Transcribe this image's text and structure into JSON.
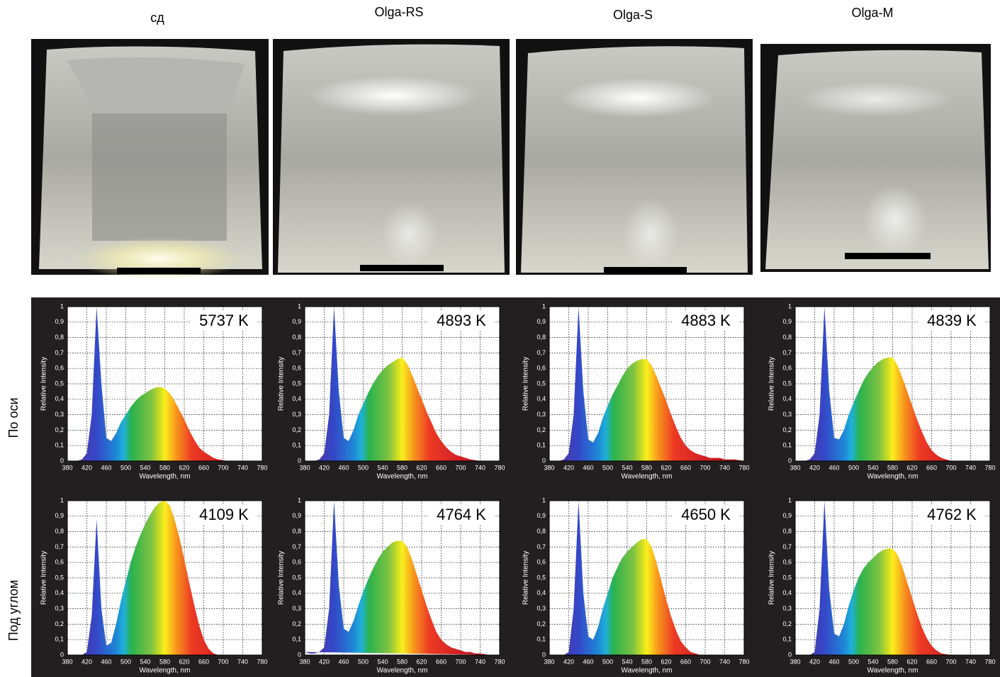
{
  "column_titles": [
    "сд",
    "Olga-RS",
    "Olga-S",
    "Olga-M"
  ],
  "row_labels": [
    "По оси",
    "Под углом"
  ],
  "chart_data": [
    {
      "type": "area",
      "annotation": "5737 K",
      "xlabel": "Wavelength, nm",
      "ylabel": "Relative Intensity",
      "x": [
        380,
        390,
        400,
        410,
        420,
        430,
        440,
        450,
        460,
        470,
        480,
        490,
        500,
        510,
        520,
        530,
        540,
        550,
        560,
        570,
        580,
        590,
        600,
        610,
        620,
        630,
        640,
        650,
        660,
        670,
        680,
        690,
        700,
        710,
        720,
        730,
        740,
        750,
        760,
        770,
        780
      ],
      "values": [
        0,
        0,
        0,
        0.01,
        0.05,
        0.3,
        1,
        0.5,
        0.15,
        0.13,
        0.18,
        0.25,
        0.3,
        0.35,
        0.39,
        0.42,
        0.44,
        0.46,
        0.475,
        0.48,
        0.47,
        0.44,
        0.39,
        0.33,
        0.27,
        0.2,
        0.14,
        0.09,
        0.06,
        0.04,
        0.02,
        0.01,
        0.005,
        0,
        0,
        0,
        0,
        0,
        0,
        0,
        0
      ],
      "xlim": [
        380,
        780
      ],
      "ylim": [
        0,
        1
      ],
      "xticks": [
        380,
        420,
        460,
        500,
        540,
        580,
        620,
        660,
        700,
        740,
        780
      ],
      "yticks": [
        0,
        {
          "value": 0.1,
          "label": "0,1"
        },
        {
          "value": 0.2,
          "label": "0,2"
        },
        {
          "value": 0.3,
          "label": "0,3"
        },
        {
          "value": 0.4,
          "label": "0,4"
        },
        {
          "value": 0.5,
          "label": "0,5"
        },
        {
          "value": 0.6,
          "label": "0,6"
        },
        {
          "value": 0.7,
          "label": "0,7"
        },
        {
          "value": 0.8,
          "label": "0,8"
        },
        {
          "value": 0.9,
          "label": "0,9"
        },
        1
      ],
      "grid": true
    },
    {
      "type": "area",
      "annotation": "4893 K",
      "xlabel": "Wavelength, nm",
      "ylabel": "Relative Intensity",
      "x": [
        380,
        390,
        400,
        410,
        420,
        430,
        440,
        450,
        460,
        470,
        480,
        490,
        500,
        510,
        520,
        530,
        540,
        550,
        560,
        570,
        580,
        590,
        600,
        610,
        620,
        630,
        640,
        650,
        660,
        670,
        680,
        690,
        700,
        710,
        720,
        730,
        740,
        750,
        760,
        770,
        780
      ],
      "values": [
        0,
        0,
        0,
        0.01,
        0.05,
        0.3,
        1,
        0.45,
        0.15,
        0.13,
        0.2,
        0.3,
        0.37,
        0.44,
        0.5,
        0.55,
        0.59,
        0.62,
        0.64,
        0.66,
        0.67,
        0.63,
        0.56,
        0.48,
        0.4,
        0.32,
        0.25,
        0.18,
        0.13,
        0.09,
        0.06,
        0.04,
        0.03,
        0.02,
        0.01,
        0.005,
        0,
        0,
        0,
        0,
        0
      ],
      "xlim": [
        380,
        780
      ],
      "ylim": [
        0,
        1
      ],
      "xticks": [
        380,
        420,
        460,
        500,
        540,
        580,
        620,
        660,
        700,
        740,
        780
      ],
      "yticks": [
        0,
        {
          "value": 0.1,
          "label": "0,1"
        },
        {
          "value": 0.2,
          "label": "0,2"
        },
        {
          "value": 0.3,
          "label": "0,3"
        },
        {
          "value": 0.4,
          "label": "0,4"
        },
        {
          "value": 0.5,
          "label": "0,5"
        },
        {
          "value": 0.6,
          "label": "0,6"
        },
        {
          "value": 0.7,
          "label": "0,7"
        },
        {
          "value": 0.8,
          "label": "0,8"
        },
        {
          "value": 0.9,
          "label": "0,9"
        },
        1
      ],
      "grid": true
    },
    {
      "type": "area",
      "annotation": "4883 K",
      "xlabel": "Wavelength, nm",
      "ylabel": "Relative Intensity",
      "x": [
        380,
        390,
        400,
        410,
        420,
        430,
        440,
        450,
        460,
        470,
        480,
        490,
        500,
        510,
        520,
        530,
        540,
        550,
        560,
        570,
        580,
        590,
        600,
        610,
        620,
        630,
        640,
        650,
        660,
        670,
        680,
        690,
        700,
        710,
        720,
        730,
        740,
        750,
        760,
        770,
        780
      ],
      "values": [
        0,
        0,
        0,
        0.01,
        0.05,
        0.3,
        1,
        0.45,
        0.14,
        0.12,
        0.18,
        0.28,
        0.36,
        0.43,
        0.49,
        0.55,
        0.6,
        0.63,
        0.65,
        0.66,
        0.66,
        0.62,
        0.55,
        0.47,
        0.39,
        0.3,
        0.22,
        0.15,
        0.1,
        0.07,
        0.05,
        0.04,
        0.03,
        0.02,
        0.02,
        0.02,
        0.01,
        0.01,
        0.01,
        0.005,
        0
      ],
      "xlim": [
        380,
        780
      ],
      "ylim": [
        0,
        1
      ],
      "xticks": [
        380,
        420,
        460,
        500,
        540,
        580,
        620,
        660,
        700,
        740,
        780
      ],
      "yticks": [
        0,
        {
          "value": 0.1,
          "label": "0,1"
        },
        {
          "value": 0.2,
          "label": "0,2"
        },
        {
          "value": 0.3,
          "label": "0,3"
        },
        {
          "value": 0.4,
          "label": "0,4"
        },
        {
          "value": 0.5,
          "label": "0,5"
        },
        {
          "value": 0.6,
          "label": "0,6"
        },
        {
          "value": 0.7,
          "label": "0,7"
        },
        {
          "value": 0.8,
          "label": "0,8"
        },
        {
          "value": 0.9,
          "label": "0,9"
        },
        1
      ],
      "grid": true
    },
    {
      "type": "area",
      "annotation": "4839 K",
      "xlabel": "Wavelength, nm",
      "ylabel": "Relative Intensity",
      "x": [
        380,
        390,
        400,
        410,
        420,
        430,
        440,
        450,
        460,
        470,
        480,
        490,
        500,
        510,
        520,
        530,
        540,
        550,
        560,
        570,
        580,
        590,
        600,
        610,
        620,
        630,
        640,
        650,
        660,
        670,
        680,
        690,
        700,
        710,
        720,
        730,
        740,
        750,
        760,
        770,
        780
      ],
      "values": [
        0,
        0,
        0,
        0.01,
        0.05,
        0.3,
        1,
        0.45,
        0.15,
        0.14,
        0.2,
        0.3,
        0.38,
        0.45,
        0.52,
        0.57,
        0.61,
        0.64,
        0.66,
        0.67,
        0.67,
        0.62,
        0.54,
        0.45,
        0.36,
        0.27,
        0.19,
        0.12,
        0.07,
        0.04,
        0.02,
        0.01,
        0,
        0,
        0,
        0,
        0,
        0,
        0,
        0,
        0
      ],
      "xlim": [
        380,
        780
      ],
      "ylim": [
        0,
        1
      ],
      "xticks": [
        380,
        420,
        460,
        500,
        540,
        580,
        620,
        660,
        700,
        740,
        780
      ],
      "yticks": [
        0,
        {
          "value": 0.1,
          "label": "0,1"
        },
        {
          "value": 0.2,
          "label": "0,2"
        },
        {
          "value": 0.3,
          "label": "0,3"
        },
        {
          "value": 0.4,
          "label": "0,4"
        },
        {
          "value": 0.5,
          "label": "0,5"
        },
        {
          "value": 0.6,
          "label": "0,6"
        },
        {
          "value": 0.7,
          "label": "0,7"
        },
        {
          "value": 0.8,
          "label": "0,8"
        },
        {
          "value": 0.9,
          "label": "0,9"
        },
        1
      ],
      "grid": true
    },
    {
      "type": "area",
      "annotation": "4109 K",
      "xlabel": "Wavelength, nm",
      "ylabel": "Relative Intensity",
      "x": [
        380,
        390,
        400,
        410,
        420,
        430,
        440,
        450,
        460,
        470,
        480,
        490,
        500,
        510,
        520,
        530,
        540,
        550,
        560,
        570,
        580,
        590,
        600,
        610,
        620,
        630,
        640,
        650,
        660,
        670,
        680,
        690,
        700,
        710,
        720,
        730,
        740,
        750,
        760,
        770,
        780
      ],
      "values": [
        0,
        0,
        0,
        0,
        0.02,
        0.25,
        0.88,
        0.3,
        0.06,
        0.08,
        0.2,
        0.35,
        0.48,
        0.6,
        0.7,
        0.78,
        0.85,
        0.91,
        0.96,
        0.99,
        1,
        0.97,
        0.88,
        0.76,
        0.62,
        0.47,
        0.33,
        0.2,
        0.1,
        0.04,
        0.01,
        0,
        0,
        0,
        0,
        0,
        0,
        0,
        0,
        0,
        0
      ],
      "xlim": [
        380,
        780
      ],
      "ylim": [
        0,
        1
      ],
      "xticks": [
        380,
        420,
        460,
        500,
        540,
        580,
        620,
        660,
        700,
        740,
        780
      ],
      "yticks": [
        0,
        {
          "value": 0.1,
          "label": "0,1"
        },
        {
          "value": 0.2,
          "label": "0,2"
        },
        {
          "value": 0.3,
          "label": "0,3"
        },
        {
          "value": 0.4,
          "label": "0,4"
        },
        {
          "value": 0.5,
          "label": "0,5"
        },
        {
          "value": 0.6,
          "label": "0,6"
        },
        {
          "value": 0.7,
          "label": "0,7"
        },
        {
          "value": 0.8,
          "label": "0,8"
        },
        {
          "value": 0.9,
          "label": "0,9"
        },
        1
      ],
      "grid": true
    },
    {
      "type": "area",
      "annotation": "4764 K",
      "xlabel": "Wavelength, nm",
      "ylabel": "Relative Intensity",
      "x": [
        380,
        390,
        400,
        410,
        420,
        430,
        440,
        450,
        460,
        470,
        480,
        490,
        500,
        510,
        520,
        530,
        540,
        550,
        560,
        570,
        580,
        590,
        600,
        610,
        620,
        630,
        640,
        650,
        660,
        670,
        680,
        690,
        700,
        710,
        720,
        730,
        740,
        750,
        760,
        770,
        780
      ],
      "values": [
        0.02,
        0.01,
        0.01,
        0.02,
        0.05,
        0.3,
        1,
        0.45,
        0.17,
        0.15,
        0.22,
        0.32,
        0.41,
        0.49,
        0.56,
        0.62,
        0.67,
        0.7,
        0.73,
        0.74,
        0.74,
        0.7,
        0.62,
        0.52,
        0.42,
        0.32,
        0.23,
        0.15,
        0.1,
        0.07,
        0.05,
        0.04,
        0.03,
        0.02,
        0.02,
        0.01,
        0.01,
        0.005,
        0,
        0,
        0
      ],
      "xlim": [
        380,
        780
      ],
      "ylim": [
        0,
        1
      ],
      "xticks": [
        380,
        420,
        460,
        500,
        540,
        580,
        620,
        660,
        700,
        740,
        780
      ],
      "yticks": [
        0,
        {
          "value": 0.1,
          "label": "0,1"
        },
        {
          "value": 0.2,
          "label": "0,2"
        },
        {
          "value": 0.3,
          "label": "0,3"
        },
        {
          "value": 0.4,
          "label": "0,4"
        },
        {
          "value": 0.5,
          "label": "0,5"
        },
        {
          "value": 0.6,
          "label": "0,6"
        },
        {
          "value": 0.7,
          "label": "0,7"
        },
        {
          "value": 0.8,
          "label": "0,8"
        },
        {
          "value": 0.9,
          "label": "0,9"
        },
        1
      ],
      "grid": true
    },
    {
      "type": "area",
      "annotation": "4650 K",
      "xlabel": "Wavelength, nm",
      "ylabel": "Relative Intensity",
      "x": [
        380,
        390,
        400,
        410,
        420,
        430,
        440,
        450,
        460,
        470,
        480,
        490,
        500,
        510,
        520,
        530,
        540,
        550,
        560,
        570,
        580,
        590,
        600,
        610,
        620,
        630,
        640,
        650,
        660,
        670,
        680,
        690,
        700,
        710,
        720,
        730,
        740,
        750,
        760,
        770,
        780
      ],
      "values": [
        0,
        0,
        0,
        0,
        0.02,
        0.3,
        1,
        0.4,
        0.12,
        0.1,
        0.18,
        0.3,
        0.4,
        0.5,
        0.57,
        0.63,
        0.67,
        0.7,
        0.73,
        0.75,
        0.75,
        0.7,
        0.6,
        0.48,
        0.36,
        0.25,
        0.16,
        0.09,
        0.05,
        0.02,
        0.01,
        0,
        0,
        0,
        0,
        0,
        0,
        0,
        0,
        0,
        0
      ],
      "xlim": [
        380,
        780
      ],
      "ylim": [
        0,
        1
      ],
      "xticks": [
        380,
        420,
        460,
        500,
        540,
        580,
        620,
        660,
        700,
        740,
        780
      ],
      "yticks": [
        0,
        {
          "value": 0.1,
          "label": "0,1"
        },
        {
          "value": 0.2,
          "label": "0,2"
        },
        {
          "value": 0.3,
          "label": "0,3"
        },
        {
          "value": 0.4,
          "label": "0,4"
        },
        {
          "value": 0.5,
          "label": "0,5"
        },
        {
          "value": 0.6,
          "label": "0,6"
        },
        {
          "value": 0.7,
          "label": "0,7"
        },
        {
          "value": 0.8,
          "label": "0,8"
        },
        {
          "value": 0.9,
          "label": "0,9"
        },
        1
      ],
      "grid": true
    },
    {
      "type": "area",
      "annotation": "4762 K",
      "xlabel": "Wavelength, nm",
      "ylabel": "Relative Intensity",
      "x": [
        380,
        390,
        400,
        410,
        420,
        430,
        440,
        450,
        460,
        470,
        480,
        490,
        500,
        510,
        520,
        530,
        540,
        550,
        560,
        570,
        580,
        590,
        600,
        610,
        620,
        630,
        640,
        650,
        660,
        670,
        680,
        690,
        700,
        710,
        720,
        730,
        740,
        750,
        760,
        770,
        780
      ],
      "values": [
        0,
        0,
        0,
        0,
        0.02,
        0.3,
        1,
        0.42,
        0.14,
        0.12,
        0.2,
        0.32,
        0.42,
        0.5,
        0.56,
        0.6,
        0.63,
        0.66,
        0.68,
        0.69,
        0.69,
        0.65,
        0.57,
        0.47,
        0.37,
        0.27,
        0.18,
        0.11,
        0.06,
        0.03,
        0.01,
        0.005,
        0,
        0,
        0,
        0,
        0,
        0,
        0,
        0,
        0
      ],
      "xlim": [
        380,
        780
      ],
      "ylim": [
        0,
        1
      ],
      "xticks": [
        380,
        420,
        460,
        500,
        540,
        580,
        620,
        660,
        700,
        740,
        780
      ],
      "yticks": [
        0,
        {
          "value": 0.1,
          "label": "0,1"
        },
        {
          "value": 0.2,
          "label": "0,2"
        },
        {
          "value": 0.3,
          "label": "0,3"
        },
        {
          "value": 0.4,
          "label": "0,4"
        },
        {
          "value": 0.5,
          "label": "0,5"
        },
        {
          "value": 0.6,
          "label": "0,6"
        },
        {
          "value": 0.7,
          "label": "0,7"
        },
        {
          "value": 0.8,
          "label": "0,8"
        },
        {
          "value": 0.9,
          "label": "0,9"
        },
        1
      ],
      "grid": true
    }
  ]
}
